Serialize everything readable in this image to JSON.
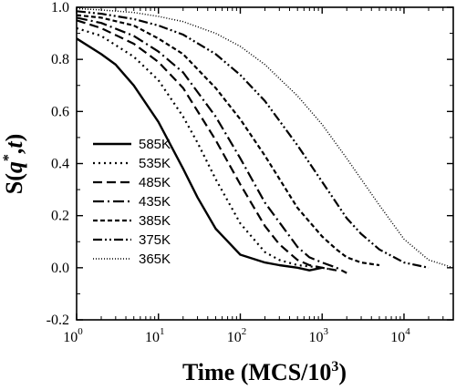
{
  "chart_data": {
    "type": "line",
    "xscale": "log",
    "xlabel_main": "Time (MCS/10",
    "xlabel_sup": "3",
    "xlabel_close": ")",
    "ylabel_parts": [
      "S(",
      "q",
      "*",
      ",",
      "t",
      ")"
    ],
    "xlim": [
      1,
      40000
    ],
    "ylim": [
      -0.2,
      1.0
    ],
    "x_ticks": [
      {
        "value": 1,
        "base": "10",
        "exp": "0"
      },
      {
        "value": 10,
        "base": "10",
        "exp": "1"
      },
      {
        "value": 100,
        "base": "10",
        "exp": "2"
      },
      {
        "value": 1000,
        "base": "10",
        "exp": "3"
      },
      {
        "value": 10000,
        "base": "10",
        "exp": "4"
      }
    ],
    "y_ticks": [
      "-0.2",
      "0.0",
      "0.2",
      "0.4",
      "0.6",
      "0.8",
      "1.0"
    ],
    "legend_position": "left-middle",
    "grid": false,
    "series": [
      {
        "name": "585K",
        "dash": "",
        "width": 2.4,
        "x": [
          1,
          2,
          3,
          5,
          10,
          20,
          30,
          50,
          100,
          200,
          300,
          500,
          700,
          1000
        ],
        "y": [
          0.88,
          0.82,
          0.78,
          0.7,
          0.56,
          0.38,
          0.27,
          0.15,
          0.05,
          0.02,
          0.01,
          0.0,
          -0.01,
          0.0
        ]
      },
      {
        "name": "535K",
        "dash": "2,4",
        "width": 2.2,
        "x": [
          1,
          2,
          5,
          10,
          20,
          30,
          50,
          100,
          200,
          300,
          500,
          1000,
          1500
        ],
        "y": [
          0.92,
          0.89,
          0.81,
          0.72,
          0.58,
          0.48,
          0.34,
          0.17,
          0.06,
          0.03,
          0.01,
          0.0,
          -0.01
        ]
      },
      {
        "name": "485K",
        "dash": "10,5",
        "width": 2.2,
        "x": [
          1,
          2,
          5,
          10,
          20,
          50,
          100,
          200,
          300,
          500,
          700,
          1000,
          1500
        ],
        "y": [
          0.95,
          0.92,
          0.86,
          0.79,
          0.69,
          0.49,
          0.32,
          0.16,
          0.09,
          0.03,
          0.01,
          0.0,
          -0.01
        ]
      },
      {
        "name": "435K",
        "dash": "12,4,2,4",
        "width": 2.2,
        "x": [
          1,
          2,
          5,
          10,
          20,
          50,
          100,
          200,
          500,
          700,
          1000,
          1500,
          2000
        ],
        "y": [
          0.96,
          0.94,
          0.89,
          0.83,
          0.75,
          0.58,
          0.42,
          0.25,
          0.08,
          0.04,
          0.02,
          0.0,
          -0.02
        ]
      },
      {
        "name": "385K",
        "dash": "5,3",
        "width": 2.2,
        "x": [
          1,
          2,
          5,
          10,
          20,
          50,
          100,
          200,
          500,
          1000,
          1500,
          2000,
          3000,
          5000
        ],
        "y": [
          0.97,
          0.96,
          0.93,
          0.88,
          0.82,
          0.69,
          0.57,
          0.43,
          0.23,
          0.12,
          0.07,
          0.04,
          0.02,
          0.01
        ]
      },
      {
        "name": "375K",
        "dash": "10,3,2,3,2,3",
        "width": 2.2,
        "x": [
          1,
          2,
          5,
          10,
          20,
          50,
          100,
          200,
          500,
          1000,
          2000,
          3000,
          5000,
          10000,
          20000
        ],
        "y": [
          0.985,
          0.975,
          0.955,
          0.93,
          0.895,
          0.82,
          0.74,
          0.64,
          0.47,
          0.33,
          0.19,
          0.13,
          0.07,
          0.02,
          0.0
        ]
      },
      {
        "name": "365K",
        "dash": "1,2",
        "width": 1.5,
        "x": [
          1,
          2,
          5,
          10,
          20,
          50,
          100,
          200,
          500,
          1000,
          2000,
          3000,
          5000,
          10000,
          20000,
          40000
        ],
        "y": [
          0.995,
          0.99,
          0.98,
          0.965,
          0.945,
          0.9,
          0.85,
          0.78,
          0.66,
          0.55,
          0.42,
          0.34,
          0.24,
          0.11,
          0.03,
          0.0
        ]
      }
    ]
  }
}
